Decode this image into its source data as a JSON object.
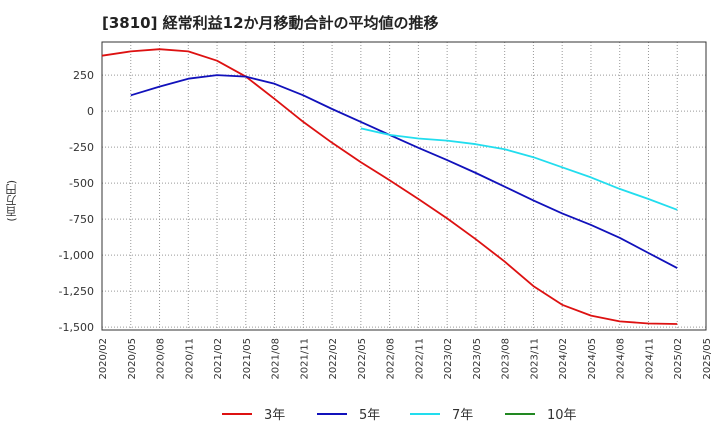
{
  "chart_data": {
    "type": "line",
    "title": "[3810]  経常利益12か月移動合計の平均値の推移",
    "ylabel": "(百万円)",
    "xlabel": "",
    "x": [
      "2020/02",
      "2020/05",
      "2020/08",
      "2020/11",
      "2021/02",
      "2021/05",
      "2021/08",
      "2021/11",
      "2022/02",
      "2022/05",
      "2022/08",
      "2022/11",
      "2023/02",
      "2023/05",
      "2023/08",
      "2023/11",
      "2024/02",
      "2024/05",
      "2024/08",
      "2024/11",
      "2025/02",
      "2025/05"
    ],
    "yticks": [
      250,
      0,
      -250,
      -500,
      -750,
      -1000,
      -1250,
      -1500
    ],
    "ytick_labels": [
      "250",
      "0",
      "-250",
      "-500",
      "-750",
      "-1,000",
      "-1,250",
      "-1,500"
    ],
    "ylim": [
      -1520,
      480
    ],
    "grid": true,
    "legend_position": "bottom",
    "series": [
      {
        "name": "3年",
        "color": "#dd1111",
        "values": [
          385,
          415,
          430,
          415,
          350,
          240,
          85,
          -75,
          -220,
          -355,
          -480,
          -610,
          -745,
          -890,
          -1045,
          -1215,
          -1345,
          -1420,
          -1460,
          -1475,
          -1478,
          null
        ]
      },
      {
        "name": "5年",
        "color": "#1111bb",
        "values": [
          null,
          110,
          170,
          225,
          250,
          240,
          190,
          110,
          15,
          -75,
          -165,
          -255,
          -340,
          -430,
          -525,
          -620,
          -710,
          -790,
          -880,
          -985,
          -1090,
          null
        ]
      },
      {
        "name": "7年",
        "color": "#22ddee",
        "values": [
          null,
          null,
          null,
          null,
          null,
          null,
          null,
          null,
          null,
          -120,
          -165,
          -190,
          -205,
          -230,
          -265,
          -320,
          -390,
          -460,
          -540,
          -610,
          -685,
          null
        ]
      },
      {
        "name": "10年",
        "color": "#228822",
        "values": [
          null,
          null,
          null,
          null,
          null,
          null,
          null,
          null,
          null,
          null,
          null,
          null,
          null,
          null,
          null,
          null,
          null,
          null,
          null,
          null,
          null,
          null
        ]
      }
    ]
  }
}
